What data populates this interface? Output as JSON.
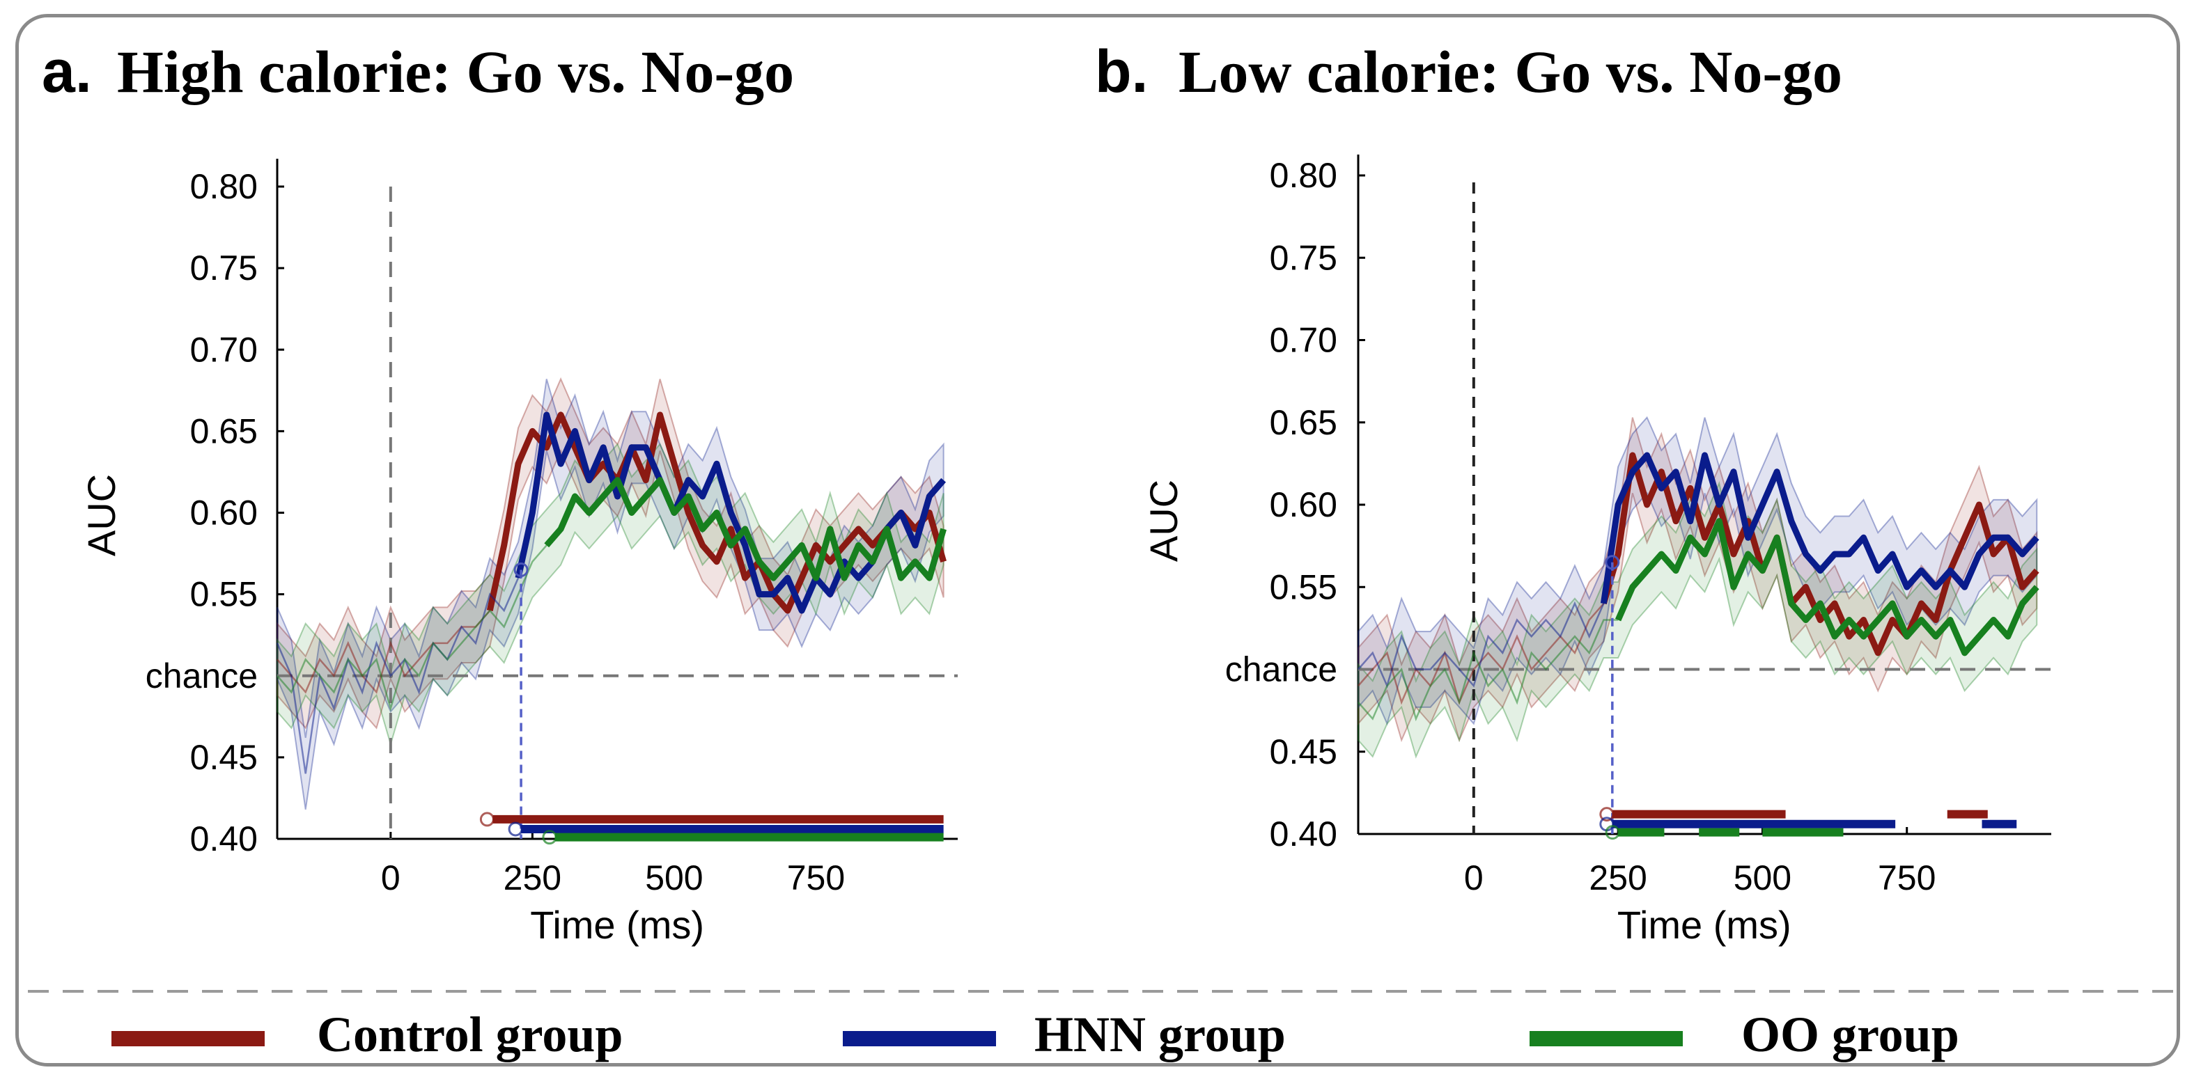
{
  "legend": {
    "items": [
      {
        "name": "Control group",
        "color": "#8b1a13"
      },
      {
        "name": "HNN group",
        "color": "#0a1c8c"
      },
      {
        "name": "OO group",
        "color": "#17801f"
      }
    ]
  },
  "chart_data": [
    {
      "type": "line",
      "panel_letter": "a.",
      "title": "High calorie: Go vs. No-go",
      "xlabel": "Time (ms)",
      "ylabel": "AUC",
      "xlim": [
        -200,
        1000
      ],
      "ylim": [
        0.4,
        0.82
      ],
      "xticks": [
        0,
        250,
        500,
        750
      ],
      "xtick_labels": [
        "0",
        "250",
        "500",
        "750"
      ],
      "yticks": [
        0.4,
        0.45,
        0.5,
        0.55,
        0.6,
        0.65,
        0.7,
        0.75,
        0.8
      ],
      "ytick_labels": [
        "0.40",
        "0.45",
        "chance",
        "0.55",
        "0.60",
        "0.65",
        "0.70",
        "0.75",
        "0.80"
      ],
      "chance_level": 0.5,
      "onset_line": 0,
      "x": [
        -200,
        -175,
        -150,
        -125,
        -100,
        -75,
        -50,
        -25,
        0,
        25,
        50,
        75,
        100,
        125,
        150,
        175,
        200,
        225,
        250,
        275,
        300,
        325,
        350,
        375,
        400,
        425,
        450,
        475,
        500,
        525,
        550,
        575,
        600,
        625,
        650,
        675,
        700,
        725,
        750,
        775,
        800,
        825,
        850,
        875,
        900,
        925,
        950,
        975
      ],
      "series": [
        {
          "name": "Control group",
          "color": "#8b1a13",
          "values": [
            0.51,
            0.5,
            0.49,
            0.51,
            0.5,
            0.52,
            0.5,
            0.49,
            0.52,
            0.5,
            0.51,
            0.52,
            0.52,
            0.53,
            0.53,
            0.54,
            0.58,
            0.63,
            0.65,
            0.64,
            0.66,
            0.64,
            0.62,
            0.63,
            0.62,
            0.64,
            0.62,
            0.66,
            0.63,
            0.6,
            0.58,
            0.57,
            0.59,
            0.56,
            0.57,
            0.55,
            0.54,
            0.56,
            0.58,
            0.57,
            0.58,
            0.59,
            0.58,
            0.59,
            0.6,
            0.59,
            0.6,
            0.57
          ],
          "sem": 0.022,
          "significant": [
            [
              180,
              1000
            ]
          ],
          "thick_from": 180
        },
        {
          "name": "HNN group",
          "color": "#0a1c8c",
          "values": [
            0.52,
            0.5,
            0.44,
            0.5,
            0.48,
            0.51,
            0.49,
            0.52,
            0.5,
            0.51,
            0.49,
            0.52,
            0.51,
            0.53,
            0.52,
            0.55,
            0.54,
            0.56,
            0.6,
            0.66,
            0.63,
            0.65,
            0.62,
            0.64,
            0.61,
            0.64,
            0.64,
            0.62,
            0.6,
            0.62,
            0.61,
            0.63,
            0.6,
            0.58,
            0.55,
            0.55,
            0.56,
            0.54,
            0.56,
            0.55,
            0.57,
            0.56,
            0.57,
            0.59,
            0.6,
            0.58,
            0.61,
            0.62
          ],
          "sem": 0.022,
          "significant": [
            [
              230,
              1000
            ]
          ],
          "thick_from": 230
        },
        {
          "name": "OO group",
          "color": "#17801f",
          "values": [
            0.5,
            0.49,
            0.51,
            0.5,
            0.49,
            0.51,
            0.5,
            0.51,
            0.48,
            0.51,
            0.5,
            0.52,
            0.51,
            0.52,
            0.53,
            0.54,
            0.53,
            0.55,
            0.57,
            0.58,
            0.59,
            0.61,
            0.6,
            0.61,
            0.62,
            0.6,
            0.61,
            0.62,
            0.6,
            0.61,
            0.59,
            0.6,
            0.58,
            0.59,
            0.57,
            0.56,
            0.57,
            0.58,
            0.56,
            0.59,
            0.56,
            0.58,
            0.57,
            0.59,
            0.56,
            0.57,
            0.56,
            0.59
          ],
          "sem": 0.022,
          "significant": [
            [
              290,
              1000
            ]
          ],
          "thick_from": 290
        }
      ]
    },
    {
      "type": "line",
      "panel_letter": "b.",
      "title": "Low calorie: Go vs. No-go",
      "xlabel": "Time (ms)",
      "ylabel": "AUC",
      "xlim": [
        -200,
        1000
      ],
      "ylim": [
        0.4,
        0.81
      ],
      "xticks": [
        0,
        250,
        500,
        750
      ],
      "xtick_labels": [
        "0",
        "250",
        "500",
        "750"
      ],
      "yticks": [
        0.4,
        0.45,
        0.5,
        0.55,
        0.6,
        0.65,
        0.7,
        0.75,
        0.8
      ],
      "ytick_labels": [
        "0.40",
        "0.45",
        "chance",
        "0.55",
        "0.60",
        "0.65",
        "0.70",
        "0.75",
        "0.80"
      ],
      "chance_level": 0.5,
      "onset_line": 0,
      "x": [
        -200,
        -175,
        -150,
        -125,
        -100,
        -75,
        -50,
        -25,
        0,
        25,
        50,
        75,
        100,
        125,
        150,
        175,
        200,
        225,
        250,
        275,
        300,
        325,
        350,
        375,
        400,
        425,
        450,
        475,
        500,
        525,
        550,
        575,
        600,
        625,
        650,
        675,
        700,
        725,
        750,
        775,
        800,
        825,
        850,
        875,
        900,
        925,
        950,
        975
      ],
      "series": [
        {
          "name": "Control group",
          "color": "#8b1a13",
          "values": [
            0.49,
            0.5,
            0.51,
            0.48,
            0.5,
            0.49,
            0.51,
            0.48,
            0.5,
            0.51,
            0.5,
            0.52,
            0.5,
            0.51,
            0.52,
            0.51,
            0.53,
            0.54,
            0.57,
            0.63,
            0.6,
            0.62,
            0.59,
            0.61,
            0.58,
            0.6,
            0.57,
            0.59,
            0.56,
            0.58,
            0.54,
            0.55,
            0.53,
            0.54,
            0.52,
            0.53,
            0.51,
            0.53,
            0.52,
            0.54,
            0.53,
            0.56,
            0.58,
            0.6,
            0.57,
            0.58,
            0.55,
            0.56
          ],
          "sem": 0.023,
          "significant": [
            [
              240,
              540
            ],
            [
              820,
              890
            ]
          ],
          "thick_from": 240
        },
        {
          "name": "HNN group",
          "color": "#0a1c8c",
          "values": [
            0.5,
            0.51,
            0.49,
            0.52,
            0.5,
            0.5,
            0.51,
            0.5,
            0.49,
            0.52,
            0.51,
            0.53,
            0.52,
            0.53,
            0.52,
            0.54,
            0.52,
            0.54,
            0.6,
            0.62,
            0.63,
            0.61,
            0.62,
            0.59,
            0.63,
            0.6,
            0.62,
            0.58,
            0.6,
            0.62,
            0.59,
            0.57,
            0.56,
            0.57,
            0.57,
            0.58,
            0.56,
            0.57,
            0.55,
            0.56,
            0.55,
            0.56,
            0.55,
            0.57,
            0.58,
            0.58,
            0.57,
            0.58
          ],
          "sem": 0.023,
          "significant": [
            [
              240,
              730
            ],
            [
              880,
              940
            ]
          ],
          "thick_from": 240
        },
        {
          "name": "OO group",
          "color": "#17801f",
          "values": [
            0.48,
            0.47,
            0.49,
            0.5,
            0.47,
            0.49,
            0.5,
            0.48,
            0.51,
            0.49,
            0.5,
            0.48,
            0.51,
            0.5,
            0.51,
            0.52,
            0.51,
            0.53,
            0.53,
            0.55,
            0.56,
            0.57,
            0.56,
            0.58,
            0.57,
            0.59,
            0.55,
            0.57,
            0.56,
            0.58,
            0.54,
            0.53,
            0.54,
            0.52,
            0.53,
            0.52,
            0.53,
            0.54,
            0.52,
            0.53,
            0.52,
            0.53,
            0.51,
            0.52,
            0.53,
            0.52,
            0.54,
            0.55
          ],
          "sem": 0.023,
          "significant": [
            [
              250,
              330
            ],
            [
              390,
              460
            ],
            [
              500,
              640
            ]
          ],
          "thick_from": 250
        }
      ]
    }
  ]
}
